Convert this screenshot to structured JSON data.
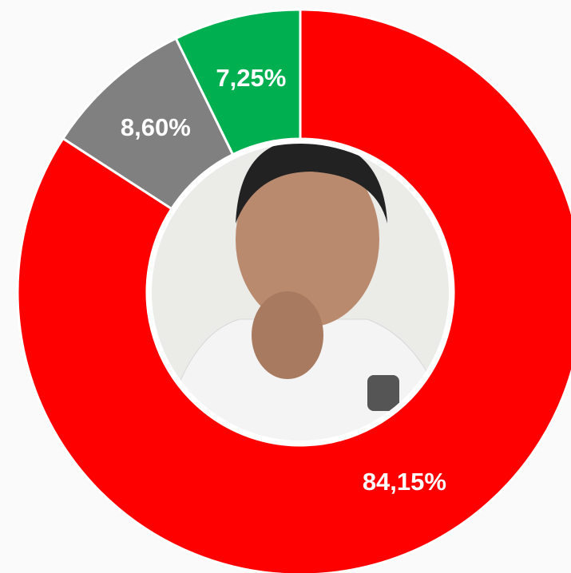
{
  "chart_data": {
    "type": "donut",
    "values": [
      84.15,
      8.6,
      7.25
    ],
    "value_labels": [
      "84,15%",
      "8,60%",
      "7,25%"
    ],
    "colors": [
      "#ff0000",
      "#808080",
      "#00b050"
    ]
  }
}
